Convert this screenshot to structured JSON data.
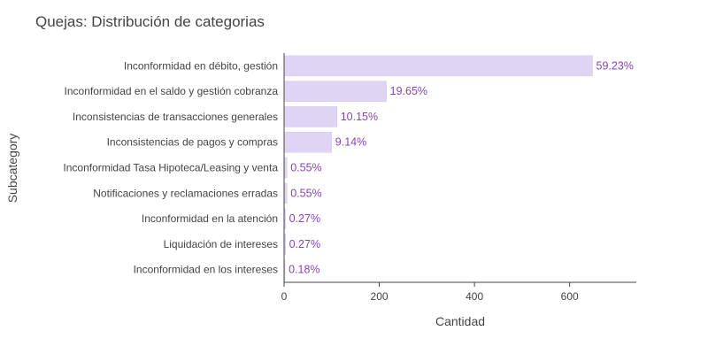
{
  "chart_data": {
    "type": "bar",
    "orientation": "horizontal",
    "title": "Quejas: Distribución de categorias",
    "xlabel": "Cantidad",
    "ylabel": "Subcategory",
    "xlim": [
      0,
      740
    ],
    "xticks": [
      0,
      200,
      400,
      600
    ],
    "grid": false,
    "bar_color": "#e0d4f5",
    "bar_stroke": "#d6c8ef",
    "label_color": "#8445b8",
    "text_color": "#444444",
    "categories": [
      "Inconformidad en débito, gestión",
      "Inconformidad en el saldo y gestión cobranza",
      "Inconsistencias de transacciones generales",
      "Inconsistencias de pagos y compras",
      "Inconformidad Tasa Hipoteca/Leasing y venta",
      "Notificaciones y reclamaciones erradas",
      "Inconformidad en la atención",
      "Liquidación de intereses",
      "Inconformidad en los intereses"
    ],
    "values": [
      648,
      215,
      111,
      100,
      6,
      6,
      3,
      3,
      2
    ],
    "data_labels": [
      "59.23%",
      "19.65%",
      "10.15%",
      "9.14%",
      "0.55%",
      "0.55%",
      "0.27%",
      "0.27%",
      "0.18%"
    ]
  }
}
